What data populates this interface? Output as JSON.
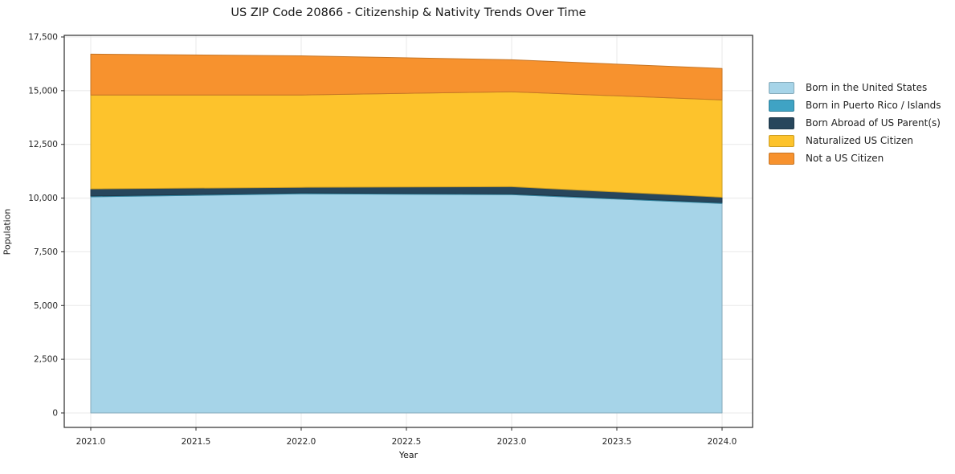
{
  "title": "US ZIP Code 20866 - Citizenship & Nativity Trends Over Time",
  "xlabel": "Year",
  "ylabel": "Population",
  "chart_data": {
    "type": "area",
    "stacked": true,
    "title": "US ZIP Code 20866 - Citizenship & Nativity Trends Over Time",
    "xlabel": "Year",
    "ylabel": "Population",
    "x": [
      2021,
      2022,
      2023,
      2024
    ],
    "series": [
      {
        "name": "Born in the United States",
        "color": "#a6d4e8",
        "values": [
          10060,
          10200,
          10160,
          9750
        ]
      },
      {
        "name": "Born in Puerto Rico / Islands",
        "color": "#3fa3c4",
        "values": [
          40,
          40,
          40,
          40
        ]
      },
      {
        "name": "Born Abroad of US Parent(s)",
        "color": "#27465c",
        "values": [
          330,
          260,
          330,
          250
        ]
      },
      {
        "name": "Naturalized US Citizen",
        "color": "#fdc32c",
        "values": [
          4370,
          4300,
          4420,
          4530
        ]
      },
      {
        "name": "Not a US Citizen",
        "color": "#f7922e",
        "values": [
          1900,
          1820,
          1490,
          1460
        ]
      }
    ],
    "stack_totals": [
      16700,
      16620,
      16440,
      16030
    ],
    "xticks": [
      2021.0,
      2021.5,
      2022.0,
      2022.5,
      2023.0,
      2023.5,
      2024.0
    ],
    "xtick_labels": [
      "2021.0",
      "2021.5",
      "2022.0",
      "2022.5",
      "2023.0",
      "2023.5",
      "2024.0"
    ],
    "yticks": [
      0,
      2500,
      5000,
      7500,
      10000,
      12500,
      15000,
      17500
    ],
    "ytick_labels": [
      "0",
      "2,500",
      "5,000",
      "7,500",
      "10,000",
      "12,500",
      "15,000",
      "17,500"
    ],
    "ylim": [
      0,
      17500
    ],
    "xlim": [
      2021,
      2024
    ],
    "grid": true,
    "legend_position": "right"
  }
}
